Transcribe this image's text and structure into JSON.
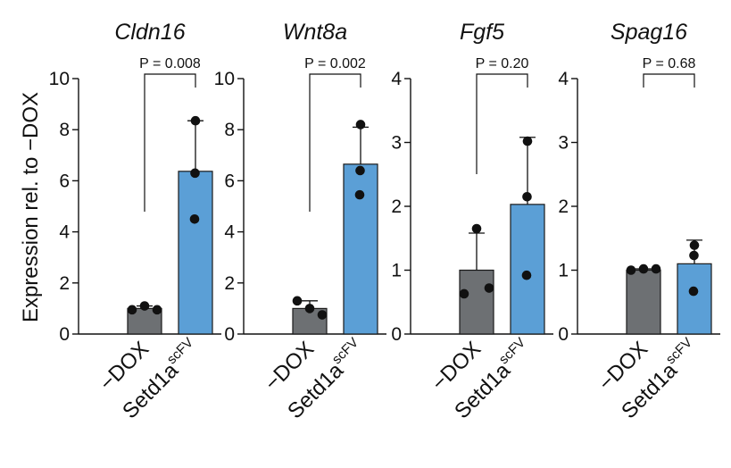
{
  "ylabel": "Expression rel. to −DOX",
  "colors": {
    "control": "#6d7073",
    "treated": "#5b9fd6",
    "stroke": "#1a1a1a",
    "point": "#111111"
  },
  "chart_data": [
    {
      "type": "bar",
      "title": "Cldn16",
      "categories": [
        "−DOX",
        "Setd1a"
      ],
      "category_superscripts": [
        "",
        "scFV"
      ],
      "values": [
        1.0,
        6.37
      ],
      "error_upper": [
        1.1,
        8.35
      ],
      "points": [
        [
          0.95,
          1.1,
          0.95
        ],
        [
          8.35,
          6.3,
          4.5
        ]
      ],
      "ylim": [
        0,
        10
      ],
      "yticks": [
        0,
        2,
        4,
        6,
        8,
        10
      ],
      "p_value": "P = 0.008"
    },
    {
      "type": "bar",
      "title": "Wnt8a",
      "categories": [
        "−DOX",
        "Setd1a"
      ],
      "category_superscripts": [
        "",
        "scFV"
      ],
      "values": [
        1.0,
        6.65
      ],
      "error_upper": [
        1.3,
        8.1
      ],
      "points": [
        [
          1.3,
          1.0,
          0.75
        ],
        [
          8.2,
          6.4,
          5.45
        ]
      ],
      "ylim": [
        0,
        10
      ],
      "yticks": [
        0,
        2,
        4,
        6,
        8,
        10
      ],
      "p_value": "P = 0.002"
    },
    {
      "type": "bar",
      "title": "Fgf5",
      "categories": [
        "−DOX",
        "Setd1a"
      ],
      "category_superscripts": [
        "",
        "scFV"
      ],
      "values": [
        1.0,
        2.03
      ],
      "error_upper": [
        1.58,
        3.08
      ],
      "points": [
        [
          0.63,
          1.65,
          0.72
        ],
        [
          3.02,
          2.15,
          0.92
        ]
      ],
      "ylim": [
        0,
        4
      ],
      "yticks": [
        0,
        1,
        2,
        3,
        4
      ],
      "p_value": "P = 0.20"
    },
    {
      "type": "bar",
      "title": "Spag16",
      "categories": [
        "−DOX",
        "Setd1a"
      ],
      "category_superscripts": [
        "",
        "scFV"
      ],
      "values": [
        1.0,
        1.1
      ],
      "error_upper": [
        1.02,
        1.47
      ],
      "points": [
        [
          1.0,
          1.02,
          1.02
        ],
        [
          1.39,
          1.23,
          0.67
        ]
      ],
      "ylim": [
        0,
        4
      ],
      "yticks": [
        0,
        1,
        2,
        3,
        4
      ],
      "p_value": "P = 0.68"
    }
  ]
}
